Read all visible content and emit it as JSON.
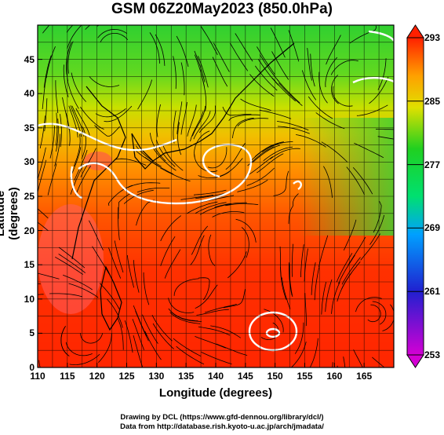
{
  "title": "GSM 06Z20May2023 (850.0hPa)",
  "axes": {
    "xlabel": "Longitude (degrees)",
    "ylabel": "Latitude  (degrees)",
    "xticks": [
      "110",
      "115",
      "120",
      "125",
      "130",
      "135",
      "140",
      "145",
      "150",
      "155",
      "160",
      "165"
    ],
    "yticks": [
      "0",
      "5",
      "10",
      "15",
      "20",
      "25",
      "30",
      "35",
      "40",
      "45"
    ],
    "xlim": [
      110,
      170
    ],
    "ylim": [
      0,
      50
    ]
  },
  "colorbar": {
    "labels": [
      "293",
      "285",
      "277",
      "269",
      "261",
      "253"
    ],
    "range": [
      253,
      293
    ],
    "colors": [
      "#d400d4",
      "#2020d0",
      "#00a0ff",
      "#00e070",
      "#20d020",
      "#e0e000",
      "#ffa000",
      "#ff2000"
    ]
  },
  "credits": {
    "line1": "Drawing by DCL (https://www.gfd-dennou.org/library/dcl/)",
    "line2": "Data from http://database.rish.kyoto-u.ac.jp/arch/jmadata/"
  },
  "chart_data": {
    "type": "heatmap",
    "variable": "temperature with streamlines",
    "level": "850.0hPa",
    "x_range": [
      110,
      170
    ],
    "y_range": [
      0,
      50
    ],
    "temperature_bands": [
      {
        "lat": 48,
        "approx_K": 277
      },
      {
        "lat": 42,
        "approx_K": 280
      },
      {
        "lat": 36,
        "approx_K": 284
      },
      {
        "lat": 30,
        "approx_K": 286
      },
      {
        "lat": 24,
        "approx_K": 288
      },
      {
        "lat": 16,
        "approx_K": 291
      },
      {
        "lat": 5,
        "approx_K": 292
      }
    ]
  }
}
